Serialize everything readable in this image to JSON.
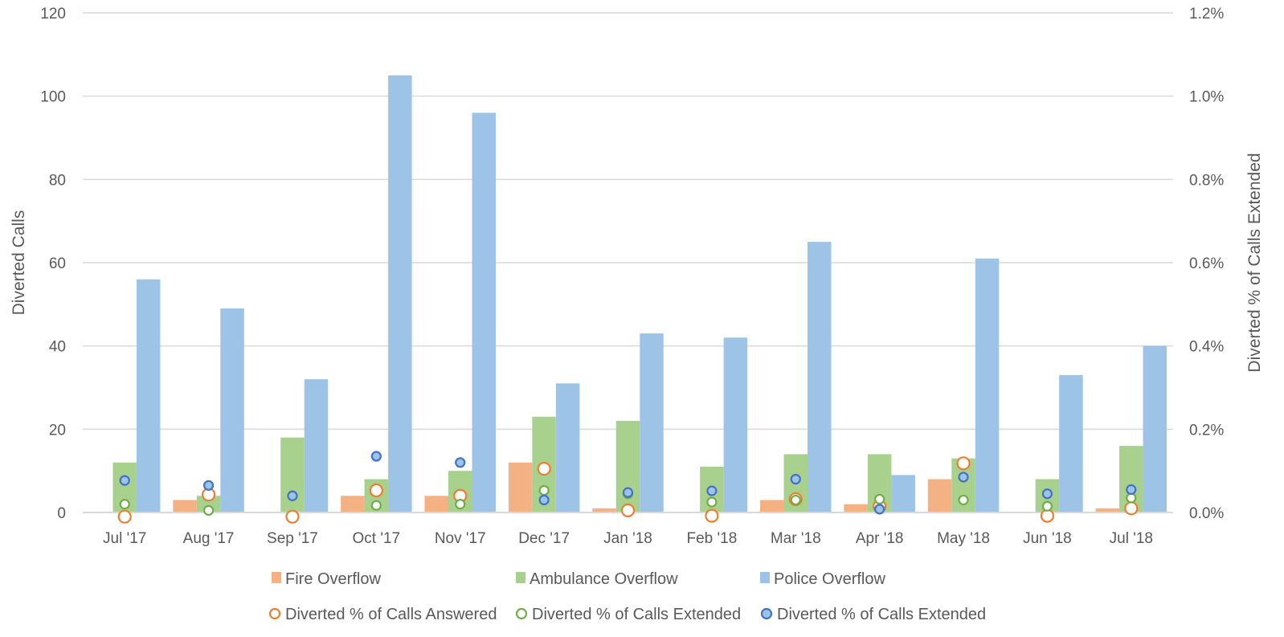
{
  "chart_data": {
    "type": "bar",
    "categories": [
      "Jul '17",
      "Aug '17",
      "Sep '17",
      "Oct '17",
      "Nov '17",
      "Dec '17",
      "Jan '18",
      "Feb '18",
      "Mar '18",
      "Apr '18",
      "May '18",
      "Jun '18",
      "Jul '18"
    ],
    "ylabel": "Diverted Calls",
    "ylim": [
      0,
      120
    ],
    "yticks": [
      0,
      20,
      40,
      60,
      80,
      100,
      120
    ],
    "y2label": "Diverted % of Calls Extended",
    "y2lim": [
      0,
      1.2
    ],
    "y2ticks": [
      "0.0%",
      "0.2%",
      "0.4%",
      "0.6%",
      "0.8%",
      "1.0%",
      "1.2%"
    ],
    "grid": true,
    "legend_position": "bottom",
    "series": [
      {
        "name": "Fire Overflow",
        "kind": "bar",
        "axis": "left",
        "color": "#F4B183",
        "values": [
          0,
          3,
          0,
          4,
          4,
          12,
          1,
          0,
          3,
          2,
          8,
          0,
          1
        ]
      },
      {
        "name": "Ambulance Overflow",
        "kind": "bar",
        "axis": "left",
        "color": "#A9D18E",
        "values": [
          12,
          4,
          18,
          8,
          10,
          23,
          22,
          11,
          14,
          14,
          13,
          8,
          16
        ]
      },
      {
        "name": "Police Overflow",
        "kind": "bar",
        "axis": "left",
        "color": "#9DC3E6",
        "values": [
          56,
          49,
          32,
          105,
          96,
          31,
          43,
          42,
          65,
          9,
          61,
          33,
          40
        ]
      },
      {
        "name": "Diverted % of Calls Answered",
        "kind": "marker",
        "axis": "right",
        "color": "#ED7D31",
        "size": "large",
        "values": [
          -0.01,
          0.043,
          -0.01,
          0.053,
          0.04,
          0.105,
          0.005,
          -0.008,
          0.032,
          0.015,
          0.118,
          -0.008,
          0.01
        ]
      },
      {
        "name": "Diverted % of Calls Extended",
        "kind": "marker",
        "axis": "right",
        "color": "#70AD47",
        "size": "small",
        "values": [
          0.02,
          0.005,
          0.04,
          0.017,
          0.02,
          0.053,
          0.045,
          0.025,
          0.03,
          0.032,
          0.03,
          0.015,
          0.035
        ]
      },
      {
        "name": "Diverted % of Calls Extended",
        "kind": "marker",
        "axis": "right",
        "color": "#4472C4",
        "fill": "#9DC3E6",
        "size": "small",
        "values": [
          0.077,
          0.065,
          0.04,
          0.135,
          0.12,
          0.03,
          0.048,
          0.052,
          0.08,
          0.008,
          0.085,
          0.045,
          0.055
        ]
      }
    ]
  }
}
